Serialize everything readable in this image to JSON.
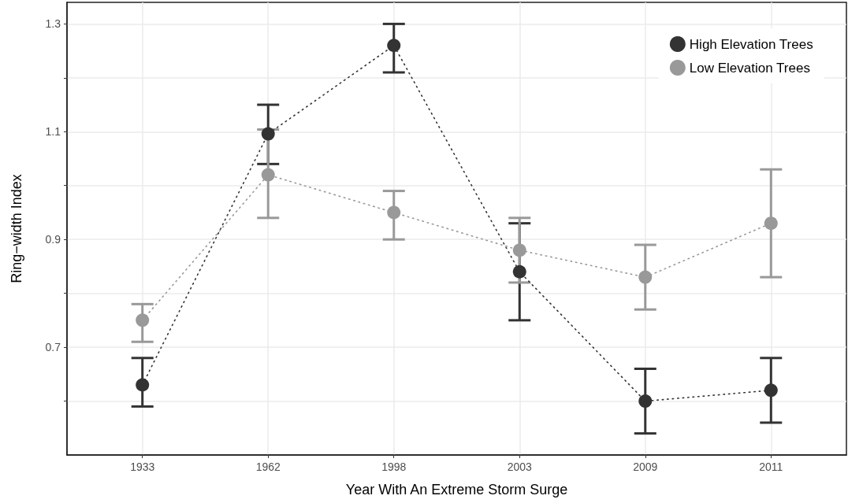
{
  "chart_data": {
    "type": "line",
    "xlabel": "Year With An Extreme Storm Surge",
    "ylabel": "Ring−width Index",
    "categories": [
      "1933",
      "1962",
      "1998",
      "2003",
      "2009",
      "2011"
    ],
    "series": [
      {
        "name": "High Elevation Trees",
        "color": "#333333",
        "values": [
          0.63,
          1.096,
          1.26,
          0.84,
          0.6,
          0.62
        ],
        "errors": [
          [
            0.59,
            0.68
          ],
          [
            1.04,
            1.15
          ],
          [
            1.21,
            1.3
          ],
          [
            0.75,
            0.93
          ],
          [
            0.54,
            0.66
          ],
          [
            0.56,
            0.68
          ]
        ]
      },
      {
        "name": "Low Elevation Trees",
        "color": "#999999",
        "values": [
          0.75,
          1.02,
          0.95,
          0.88,
          0.83,
          0.93
        ],
        "errors": [
          [
            0.71,
            0.78
          ],
          [
            0.94,
            1.104
          ],
          [
            0.9,
            0.99
          ],
          [
            0.82,
            0.94
          ],
          [
            0.77,
            0.89
          ],
          [
            0.83,
            1.03
          ]
        ]
      }
    ],
    "ylim": [
      0.5,
      1.34
    ],
    "yticks": [
      {
        "value": 0.6,
        "label": null
      },
      0.7,
      {
        "value": 0.8,
        "label": null
      },
      0.9,
      {
        "value": 1.0,
        "label": null
      },
      1.1,
      {
        "value": 1.2,
        "label": null
      },
      1.3
    ],
    "grid": true,
    "legend": "top right",
    "marker": "circle",
    "line_style": "dotted"
  }
}
